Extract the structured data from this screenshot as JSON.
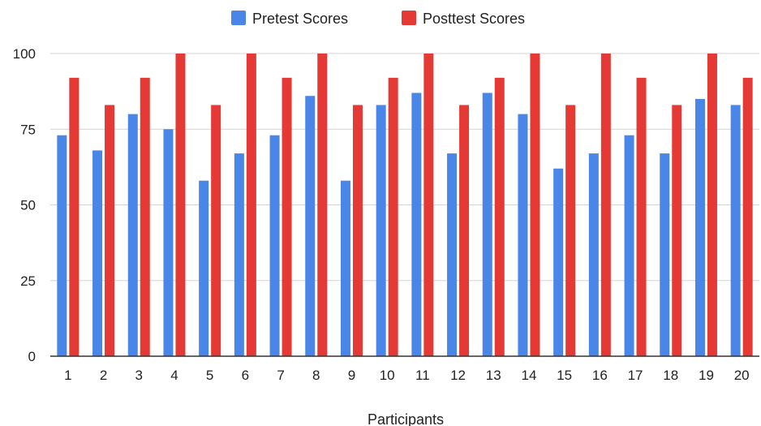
{
  "chart_data": {
    "type": "bar",
    "categories": [
      "1",
      "2",
      "3",
      "4",
      "5",
      "6",
      "7",
      "8",
      "9",
      "10",
      "11",
      "12",
      "13",
      "14",
      "15",
      "16",
      "17",
      "18",
      "19",
      "20"
    ],
    "series": [
      {
        "name": "Pretest Scores",
        "color": "#4a86e8",
        "values": [
          73,
          68,
          80,
          75,
          58,
          67,
          73,
          86,
          58,
          83,
          87,
          67,
          87,
          80,
          62,
          67,
          73,
          67,
          85,
          83
        ]
      },
      {
        "name": "Posttest Scores",
        "color": "#e53935",
        "values": [
          92,
          83,
          92,
          100,
          83,
          100,
          92,
          100,
          83,
          92,
          100,
          83,
          92,
          100,
          83,
          100,
          92,
          83,
          100,
          92
        ]
      }
    ],
    "xlabel": "Participants",
    "ylabel": "",
    "ylim": [
      0,
      100
    ],
    "yticks": [
      "0",
      "25",
      "50",
      "75",
      "100"
    ],
    "grid": true,
    "legend_position": "top-center"
  }
}
